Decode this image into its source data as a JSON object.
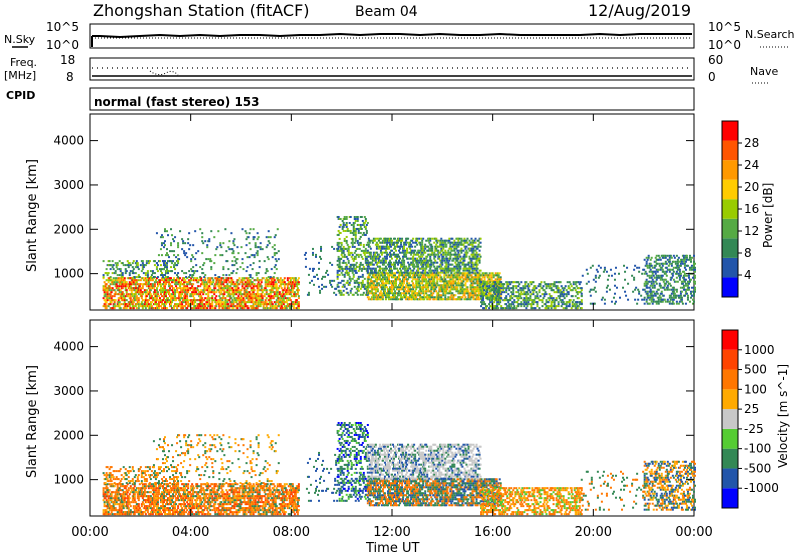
{
  "header": {
    "station": "Zhongshan Station (fitACF)",
    "beam": "Beam 04",
    "date": "12/Aug/2019"
  },
  "ops_panels": {
    "nsky_label": "N.Sky",
    "freq_label_top": "Freq.",
    "freq_label_unit": "[MHz]",
    "cpid_label": "CPID",
    "nsearch_label": "N.Search",
    "nave_label": "Nave",
    "noise_ticks_left": [
      "10^5",
      "10^0"
    ],
    "noise_ticks_right": [
      "10^5",
      "10^0"
    ],
    "freq_ticks": [
      "18",
      "8"
    ],
    "nave_ticks": [
      "60",
      "0"
    ],
    "cpid_text": "normal (fast stereo) 153"
  },
  "chart_data": [
    {
      "type": "heatmap",
      "name": "power",
      "ylabel": "Slant Range [km]",
      "yticks": [
        "4000",
        "3000",
        "2000",
        "1000"
      ],
      "ylim": [
        180,
        4600
      ],
      "xlim": [
        0,
        24
      ],
      "colorbar_label": "Power [dB]",
      "colorbar_ticks": [
        "28",
        "24",
        "20",
        "16",
        "12",
        "8",
        "4"
      ],
      "colors": [
        "#0000ff",
        "#2255aa",
        "#338855",
        "#55aa44",
        "#99cc00",
        "#ffcc00",
        "#ff9900",
        "#ff5500",
        "#ff0000"
      ]
    },
    {
      "type": "heatmap",
      "name": "velocity",
      "ylabel": "Slant Range [km]",
      "yticks": [
        "4000",
        "3000",
        "2000",
        "1000"
      ],
      "ylim": [
        180,
        4600
      ],
      "xlim": [
        0,
        24
      ],
      "colorbar_label": "Velocity [m s^-1]",
      "colorbar_ticks": [
        "1000",
        "500",
        "100",
        "25",
        "-25",
        "-100",
        "-500",
        "-1000"
      ],
      "colors": [
        "#0000ff",
        "#2255aa",
        "#338855",
        "#55cc33",
        "#c8c8c8",
        "#ffaa00",
        "#ff7700",
        "#ff4400",
        "#ff0000"
      ]
    }
  ],
  "xaxis": {
    "ticks": [
      "00:00",
      "04:00",
      "08:00",
      "12:00",
      "16:00",
      "20:00",
      "00:00"
    ],
    "label": "Time UT"
  }
}
